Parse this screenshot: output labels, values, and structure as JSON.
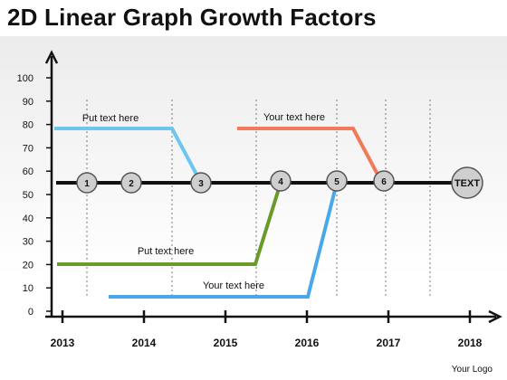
{
  "title": "2D Linear Graph Growth Factors",
  "y_ticks": [
    "0",
    "10",
    "20",
    "30",
    "40",
    "50",
    "60",
    "70",
    "80",
    "90",
    "100"
  ],
  "x_ticks": [
    "2013",
    "2014",
    "2015",
    "2016",
    "2017",
    "2018"
  ],
  "milestones": [
    "1",
    "2",
    "3",
    "4",
    "5",
    "6"
  ],
  "end_label": "TEXT",
  "notes": [
    {
      "text": "Put text here",
      "color": "#6ec6f0"
    },
    {
      "text": "Your text here",
      "color": "#f07a5a"
    },
    {
      "text": "Put text here",
      "color": "#6a9a2a"
    },
    {
      "text": "Your text here",
      "color": "#4aa8ea"
    }
  ],
  "logo": "Your Logo",
  "colors": {
    "axis": "#111111",
    "timeline": "#111111",
    "node_fill": "#cfcfcf",
    "node_stroke": "#555555"
  }
}
